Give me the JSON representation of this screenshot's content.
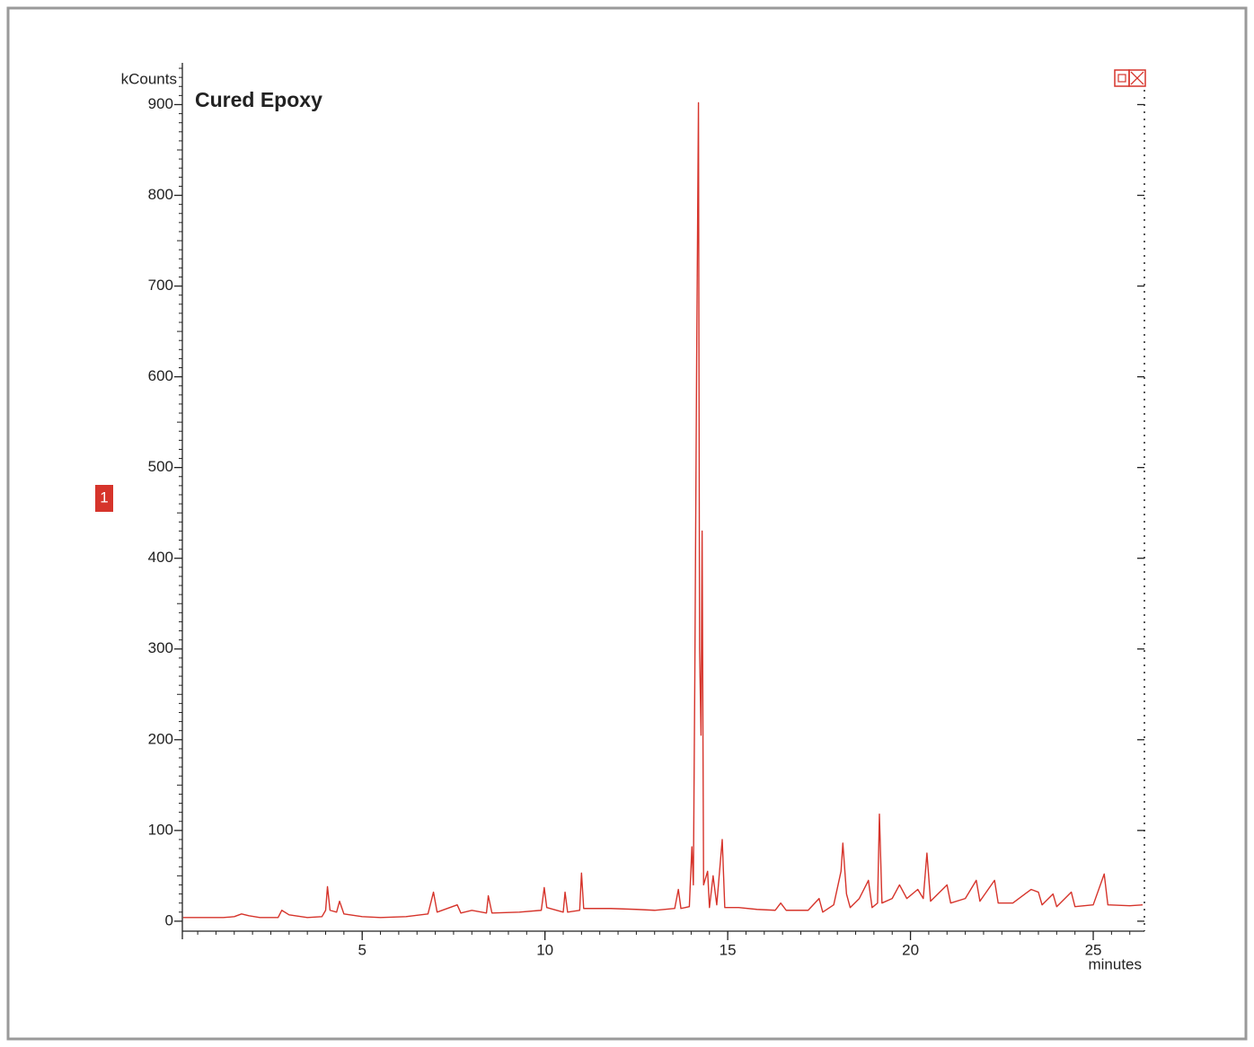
{
  "chart_data": {
    "type": "line",
    "title": "Cured Epoxy",
    "y_label": "kCounts",
    "x_label": "minutes",
    "trace_label": "1",
    "color": "#d6342b",
    "x": [
      0.1,
      1.2,
      1.5,
      1.7,
      1.9,
      2.2,
      2.7,
      2.8,
      3.0,
      3.5,
      3.9,
      4.0,
      4.05,
      4.12,
      4.3,
      4.38,
      4.5,
      5.0,
      5.5,
      6.2,
      6.8,
      6.95,
      7.05,
      7.6,
      7.7,
      8.0,
      8.4,
      8.45,
      8.55,
      9.3,
      9.9,
      9.98,
      10.05,
      10.5,
      10.55,
      10.62,
      10.95,
      11.0,
      11.06,
      11.8,
      12.5,
      13.0,
      13.55,
      13.65,
      13.72,
      13.95,
      14.02,
      14.06,
      14.1,
      14.15,
      14.2,
      14.23,
      14.27,
      14.3,
      14.34,
      14.45,
      14.5,
      14.6,
      14.7,
      14.85,
      14.92,
      15.3,
      15.8,
      16.3,
      16.45,
      16.6,
      17.2,
      17.5,
      17.6,
      17.9,
      18.1,
      18.15,
      18.25,
      18.35,
      18.6,
      18.85,
      18.95,
      19.1,
      19.15,
      19.22,
      19.5,
      19.7,
      19.9,
      20.2,
      20.35,
      20.45,
      20.55,
      21.0,
      21.1,
      21.5,
      21.8,
      21.9,
      22.3,
      22.4,
      22.8,
      23.3,
      23.5,
      23.6,
      23.9,
      24.0,
      24.4,
      24.5,
      25.0,
      25.3,
      25.4,
      26.0,
      26.35
    ],
    "values": [
      4,
      4,
      5,
      8,
      6,
      4,
      4,
      12,
      7,
      4,
      5,
      12,
      38,
      12,
      10,
      22,
      8,
      5,
      4,
      5,
      8,
      32,
      10,
      18,
      9,
      12,
      9,
      28,
      9,
      10,
      12,
      37,
      15,
      10,
      32,
      10,
      12,
      53,
      14,
      14,
      13,
      12,
      14,
      35,
      14,
      16,
      82,
      40,
      268,
      616,
      902,
      300,
      205,
      430,
      40,
      55,
      15,
      50,
      18,
      90,
      15,
      15,
      13,
      12,
      20,
      12,
      12,
      25,
      10,
      18,
      55,
      86,
      30,
      15,
      25,
      45,
      15,
      20,
      118,
      20,
      25,
      40,
      25,
      35,
      25,
      75,
      22,
      40,
      20,
      25,
      45,
      22,
      45,
      20,
      20,
      35,
      32,
      18,
      30,
      16,
      32,
      16,
      18,
      52,
      18,
      17,
      18
    ],
    "xlim": [
      0.08,
      26.4
    ],
    "ylim": [
      -11,
      946
    ],
    "xticks": [
      5,
      10,
      15,
      20,
      25
    ],
    "yticks": [
      0,
      100,
      200,
      300,
      400,
      500,
      600,
      700,
      800,
      900
    ]
  }
}
